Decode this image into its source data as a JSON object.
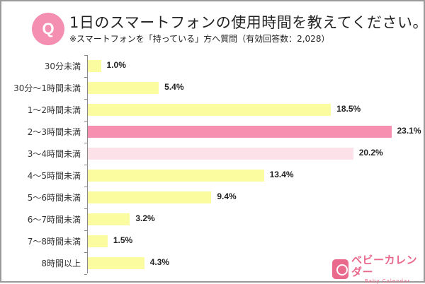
{
  "header": {
    "badge": "Q",
    "title": "1日のスマートフォンの使用時間を教えてください。",
    "subtitle": "※スマートフォンを「持っている」方へ質問（有効回答数：2,028）"
  },
  "logo": {
    "name_jp": "ベビーカレンダー",
    "name_en": "Baby Calendar"
  },
  "colors": {
    "default_bar": "#fbfca0",
    "highlight_bar": "#f78fb0",
    "secondary_bar": "#fce1e9",
    "accent": "#f48fb1"
  },
  "chart_data": {
    "type": "bar",
    "orientation": "horizontal",
    "title": "1日のスマートフォンの使用時間を教えてください。",
    "subtitle": "※スマートフォンを「持っている」方へ質問（有効回答数：2,028）",
    "categories": [
      "30分未満",
      "30分～1時間未満",
      "1～2時間未満",
      "2～3時間未満",
      "3～4時間未満",
      "4～5時間未満",
      "5～6時間未満",
      "6～7時間未満",
      "7～8時間未満",
      "8時間以上"
    ],
    "values": [
      1.0,
      5.4,
      18.5,
      23.1,
      20.2,
      13.4,
      9.4,
      3.2,
      1.5,
      4.3
    ],
    "labels": [
      "1.0%",
      "5.4%",
      "18.5%",
      "23.1%",
      "20.2%",
      "13.4%",
      "9.4%",
      "3.2%",
      "1.5%",
      "4.3%"
    ],
    "unit": "%",
    "xlabel": "",
    "ylabel": "",
    "grid": false,
    "legend": null,
    "highlight": {
      "2～3時間未満": "highlight_bar",
      "3～4時間未満": "secondary_bar"
    }
  }
}
